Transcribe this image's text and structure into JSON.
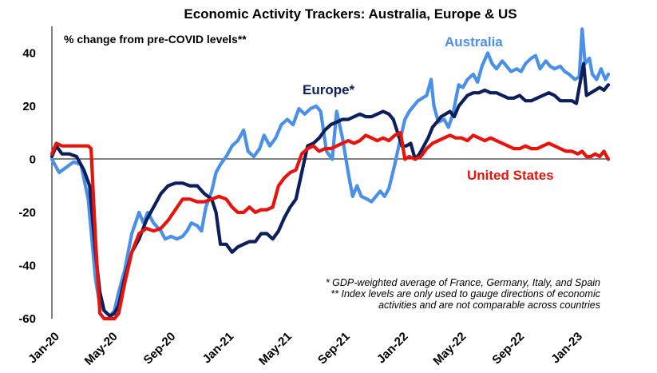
{
  "chart_data": {
    "type": "line",
    "title": "Economic Activity Trackers: Australia, Europe & US",
    "subtitle": "% change from pre-COVID levels**",
    "ylim": [
      -60,
      50
    ],
    "yticks": [
      -60,
      -40,
      -20,
      0,
      20,
      40
    ],
    "x_range": [
      0,
      38.3
    ],
    "x_ticks": [
      {
        "label": "Jan-20",
        "m": 0
      },
      {
        "label": "May-20",
        "m": 4
      },
      {
        "label": "Sep-20",
        "m": 8
      },
      {
        "label": "Jan-21",
        "m": 12
      },
      {
        "label": "May-21",
        "m": 16
      },
      {
        "label": "Sep-21",
        "m": 20
      },
      {
        "label": "Jan-22",
        "m": 24
      },
      {
        "label": "May-22",
        "m": 28
      },
      {
        "label": "Sep-22",
        "m": 32
      },
      {
        "label": "Jan-23",
        "m": 36
      }
    ],
    "x_unit": "months since Jan-20",
    "series": [
      {
        "name": "Australia",
        "color": "#4a90e8",
        "points": [
          [
            0,
            0
          ],
          [
            0.5,
            -5
          ],
          [
            1,
            -3
          ],
          [
            1.5,
            -1
          ],
          [
            2,
            -2
          ],
          [
            2.5,
            -15
          ],
          [
            3,
            -45
          ],
          [
            3.3,
            -55
          ],
          [
            3.6,
            -57
          ],
          [
            4,
            -59
          ],
          [
            4.3,
            -57
          ],
          [
            4.6,
            -50
          ],
          [
            5,
            -42
          ],
          [
            5.5,
            -28
          ],
          [
            6,
            -20
          ],
          [
            6.3,
            -24
          ],
          [
            6.6,
            -20
          ],
          [
            7,
            -24
          ],
          [
            7.5,
            -27
          ],
          [
            7.8,
            -30
          ],
          [
            8.2,
            -29
          ],
          [
            8.6,
            -30
          ],
          [
            9,
            -29
          ],
          [
            9.3,
            -27
          ],
          [
            9.6,
            -24
          ],
          [
            10,
            -25
          ],
          [
            10.3,
            -27
          ],
          [
            10.6,
            -18
          ],
          [
            11,
            -12
          ],
          [
            11.3,
            -5
          ],
          [
            11.6,
            -2
          ],
          [
            12,
            1
          ],
          [
            12.4,
            5
          ],
          [
            12.8,
            7
          ],
          [
            13.2,
            11
          ],
          [
            13.5,
            3
          ],
          [
            13.9,
            1
          ],
          [
            14.3,
            4
          ],
          [
            14.6,
            9
          ],
          [
            15,
            5
          ],
          [
            15.4,
            8
          ],
          [
            15.8,
            13
          ],
          [
            16.2,
            15
          ],
          [
            16.6,
            13
          ],
          [
            17,
            19
          ],
          [
            17.4,
            17
          ],
          [
            17.8,
            19
          ],
          [
            18.2,
            20
          ],
          [
            18.5,
            18
          ],
          [
            18.9,
            3
          ],
          [
            19.3,
            0
          ],
          [
            19.6,
            18
          ],
          [
            20,
            8
          ],
          [
            20.4,
            -5
          ],
          [
            20.7,
            -14
          ],
          [
            21,
            -10
          ],
          [
            21.3,
            -14
          ],
          [
            21.7,
            -15
          ],
          [
            22,
            -16
          ],
          [
            22.3,
            -14
          ],
          [
            22.6,
            -12
          ],
          [
            22.9,
            -14
          ],
          [
            23.2,
            -11
          ],
          [
            23.6,
            -2
          ],
          [
            24,
            8
          ],
          [
            24.3,
            15
          ],
          [
            24.6,
            18
          ],
          [
            24.9,
            20
          ],
          [
            25.2,
            22
          ],
          [
            25.5,
            23
          ],
          [
            25.8,
            24
          ],
          [
            26.1,
            30
          ],
          [
            26.3,
            20
          ],
          [
            26.6,
            14
          ],
          [
            27,
            15
          ],
          [
            27.3,
            12
          ],
          [
            27.6,
            17
          ],
          [
            28,
            28
          ],
          [
            28.3,
            27
          ],
          [
            28.6,
            30
          ],
          [
            29,
            32
          ],
          [
            29.3,
            29
          ],
          [
            29.6,
            35
          ],
          [
            30,
            40
          ],
          [
            30.3,
            36
          ],
          [
            30.6,
            34
          ],
          [
            31,
            37
          ],
          [
            31.3,
            35
          ],
          [
            31.6,
            33
          ],
          [
            32,
            34
          ],
          [
            32.3,
            33
          ],
          [
            32.6,
            36
          ],
          [
            33,
            38
          ],
          [
            33.3,
            39
          ],
          [
            33.6,
            34
          ],
          [
            34,
            37
          ],
          [
            34.3,
            35
          ],
          [
            34.6,
            34
          ],
          [
            35,
            35
          ],
          [
            35.3,
            33
          ],
          [
            35.6,
            32
          ],
          [
            36,
            30
          ],
          [
            36.3,
            31
          ],
          [
            36.5,
            49
          ],
          [
            36.7,
            36
          ],
          [
            37,
            38
          ],
          [
            37.2,
            32
          ],
          [
            37.5,
            30
          ],
          [
            37.8,
            34
          ],
          [
            38.1,
            30
          ],
          [
            38.3,
            32
          ]
        ]
      },
      {
        "name": "Europe*",
        "color": "#0c1f5c",
        "points": [
          [
            0,
            1
          ],
          [
            0.3,
            5
          ],
          [
            0.7,
            2
          ],
          [
            1.2,
            2
          ],
          [
            1.7,
            1
          ],
          [
            2.2,
            -4
          ],
          [
            2.6,
            -10
          ],
          [
            3,
            -35
          ],
          [
            3.3,
            -50
          ],
          [
            3.6,
            -57
          ],
          [
            4,
            -59
          ],
          [
            4.3,
            -58
          ],
          [
            4.6,
            -55
          ],
          [
            5,
            -45
          ],
          [
            5.5,
            -35
          ],
          [
            6,
            -30
          ],
          [
            6.5,
            -23
          ],
          [
            7,
            -18
          ],
          [
            7.5,
            -13
          ],
          [
            8,
            -10
          ],
          [
            8.5,
            -9
          ],
          [
            9,
            -9
          ],
          [
            9.5,
            -10
          ],
          [
            10,
            -10
          ],
          [
            10.5,
            -13
          ],
          [
            11,
            -15
          ],
          [
            11.3,
            -20
          ],
          [
            11.6,
            -32
          ],
          [
            12,
            -32
          ],
          [
            12.4,
            -35
          ],
          [
            12.8,
            -33
          ],
          [
            13.2,
            -32
          ],
          [
            13.6,
            -31
          ],
          [
            14,
            -31
          ],
          [
            14.4,
            -28
          ],
          [
            14.8,
            -28
          ],
          [
            15.2,
            -30
          ],
          [
            15.6,
            -27
          ],
          [
            16,
            -22
          ],
          [
            16.4,
            -18
          ],
          [
            16.8,
            -15
          ],
          [
            17.2,
            -5
          ],
          [
            17.6,
            5
          ],
          [
            18,
            6
          ],
          [
            18.4,
            8
          ],
          [
            18.8,
            11
          ],
          [
            19.2,
            13
          ],
          [
            19.6,
            14
          ],
          [
            20,
            15
          ],
          [
            20.4,
            15
          ],
          [
            20.8,
            16
          ],
          [
            21.2,
            17
          ],
          [
            21.6,
            16
          ],
          [
            22,
            16
          ],
          [
            22.4,
            17
          ],
          [
            22.8,
            18
          ],
          [
            23.2,
            17
          ],
          [
            23.5,
            15
          ],
          [
            23.8,
            10
          ],
          [
            24.1,
            5
          ],
          [
            24.4,
            5
          ],
          [
            24.7,
            6
          ],
          [
            25,
            0
          ],
          [
            25.3,
            2
          ],
          [
            25.6,
            5
          ],
          [
            25.9,
            8
          ],
          [
            26.2,
            12
          ],
          [
            26.5,
            14
          ],
          [
            26.8,
            16
          ],
          [
            27.1,
            17
          ],
          [
            27.4,
            18
          ],
          [
            27.7,
            16
          ],
          [
            28,
            20
          ],
          [
            28.3,
            22
          ],
          [
            28.6,
            24
          ],
          [
            29,
            25
          ],
          [
            29.4,
            25
          ],
          [
            29.8,
            26
          ],
          [
            30.2,
            25
          ],
          [
            30.6,
            25
          ],
          [
            31,
            24
          ],
          [
            31.4,
            23
          ],
          [
            31.8,
            23
          ],
          [
            32.2,
            24
          ],
          [
            32.6,
            22
          ],
          [
            33,
            22
          ],
          [
            33.4,
            23
          ],
          [
            33.8,
            24
          ],
          [
            34.2,
            25
          ],
          [
            34.6,
            24
          ],
          [
            35,
            22
          ],
          [
            35.4,
            22
          ],
          [
            35.8,
            22
          ],
          [
            36.1,
            21
          ],
          [
            36.4,
            30
          ],
          [
            36.6,
            36
          ],
          [
            36.8,
            24
          ],
          [
            37.1,
            25
          ],
          [
            37.4,
            26
          ],
          [
            37.7,
            27
          ],
          [
            38,
            26
          ],
          [
            38.3,
            28
          ]
        ]
      },
      {
        "name": "United States",
        "color": "#e8140c",
        "points": [
          [
            0,
            2
          ],
          [
            0.3,
            6
          ],
          [
            0.7,
            5
          ],
          [
            1.2,
            5
          ],
          [
            1.7,
            5
          ],
          [
            2.2,
            5
          ],
          [
            2.5,
            5
          ],
          [
            2.7,
            4
          ],
          [
            3,
            -30
          ],
          [
            3.3,
            -58
          ],
          [
            3.6,
            -61
          ],
          [
            4,
            -62
          ],
          [
            4.3,
            -61
          ],
          [
            4.6,
            -58
          ],
          [
            5,
            -47
          ],
          [
            5.5,
            -35
          ],
          [
            6,
            -28
          ],
          [
            6.5,
            -26
          ],
          [
            7,
            -27
          ],
          [
            7.5,
            -26
          ],
          [
            8,
            -23
          ],
          [
            8.5,
            -19
          ],
          [
            9,
            -15
          ],
          [
            9.5,
            -15
          ],
          [
            10,
            -16
          ],
          [
            10.5,
            -16
          ],
          [
            11,
            -15
          ],
          [
            11.5,
            -14
          ],
          [
            12,
            -15
          ],
          [
            12.4,
            -18
          ],
          [
            12.8,
            -20
          ],
          [
            13.2,
            -20
          ],
          [
            13.6,
            -18
          ],
          [
            14,
            -20
          ],
          [
            14.4,
            -19
          ],
          [
            14.8,
            -19
          ],
          [
            15.2,
            -18
          ],
          [
            15.6,
            -10
          ],
          [
            16,
            -7
          ],
          [
            16.4,
            -5
          ],
          [
            16.8,
            -4
          ],
          [
            17.2,
            2
          ],
          [
            17.6,
            4
          ],
          [
            18,
            5
          ],
          [
            18.4,
            3
          ],
          [
            18.8,
            4
          ],
          [
            19.2,
            4
          ],
          [
            19.6,
            5
          ],
          [
            20,
            6
          ],
          [
            20.4,
            7
          ],
          [
            20.8,
            6
          ],
          [
            21.2,
            7
          ],
          [
            21.6,
            9
          ],
          [
            22,
            8
          ],
          [
            22.4,
            7
          ],
          [
            22.8,
            8
          ],
          [
            23.2,
            7
          ],
          [
            23.6,
            9
          ],
          [
            24,
            10
          ],
          [
            24.3,
            0
          ],
          [
            24.6,
            1
          ],
          [
            25,
            0
          ],
          [
            25.4,
            1
          ],
          [
            25.8,
            4
          ],
          [
            26.2,
            6
          ],
          [
            26.6,
            7
          ],
          [
            27,
            8
          ],
          [
            27.4,
            9
          ],
          [
            27.8,
            8
          ],
          [
            28.2,
            8
          ],
          [
            28.6,
            7
          ],
          [
            29,
            9
          ],
          [
            29.4,
            8
          ],
          [
            29.8,
            7
          ],
          [
            30.2,
            8
          ],
          [
            30.6,
            7
          ],
          [
            31,
            6
          ],
          [
            31.4,
            5
          ],
          [
            31.8,
            4
          ],
          [
            32.2,
            4
          ],
          [
            32.6,
            5
          ],
          [
            33,
            4
          ],
          [
            33.4,
            4
          ],
          [
            33.8,
            5
          ],
          [
            34.2,
            6
          ],
          [
            34.6,
            5
          ],
          [
            35,
            4
          ],
          [
            35.4,
            3
          ],
          [
            35.8,
            3
          ],
          [
            36.2,
            2
          ],
          [
            36.5,
            3
          ],
          [
            36.8,
            1
          ],
          [
            37.1,
            1
          ],
          [
            37.4,
            2
          ],
          [
            37.7,
            1
          ],
          [
            38,
            3
          ],
          [
            38.3,
            0
          ]
        ]
      }
    ],
    "series_labels": [
      "Australia",
      "Europe*",
      "United States"
    ],
    "notes": [
      "* GDP-weighted average of France, Germany, Italy, and Spain",
      "** Index levels are only used to gauge directions of economic",
      "activities and are not comparable across countries"
    ]
  }
}
